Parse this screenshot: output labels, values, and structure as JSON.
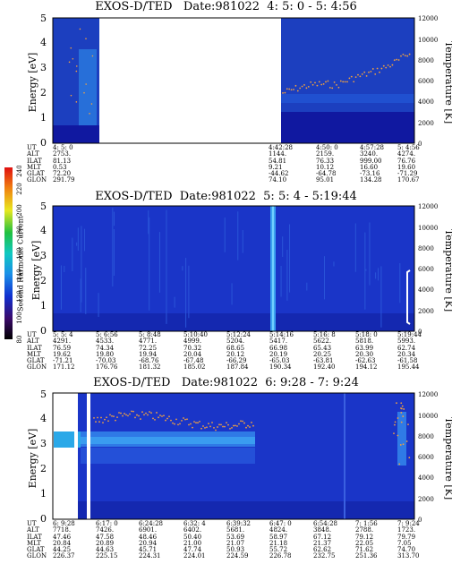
{
  "chart_data": [
    {
      "type": "heatmap",
      "title": "EXOS-D/TED   Date:981022  4: 5: 0 - 5: 4:56",
      "ylabel": "Energy [eV]",
      "y2label": "Temperature [K]",
      "ylim": [
        0,
        5
      ],
      "y2lim": [
        0,
        12000
      ],
      "yticks": [
        "0",
        "1",
        "2",
        "3",
        "4",
        "5"
      ],
      "y2ticks": [
        "0",
        "2000",
        "4000",
        "6000",
        "8000",
        "10000",
        "12000"
      ],
      "data_gap": "no data between 4: 5: 0 block and 4:42:28",
      "info_labels": [
        "UT",
        "ALT",
        "ILAT",
        "MLT",
        "GLAT",
        "GLON"
      ],
      "info_columns": [
        {
          "UT": "4: 5: 0",
          "ALT": "2753.",
          "ILAT": "81.13",
          "MLT": "0.53",
          "GLAT": "72.20",
          "GLON": "291.79"
        },
        {
          "UT": "4:42:28",
          "ALT": "1144.",
          "ILAT": "54.81",
          "MLT": "9.21",
          "GLAT": "-44.62",
          "GLON": "74.10"
        },
        {
          "UT": "4:50: 0",
          "ALT": "2159.",
          "ILAT": "76.33",
          "MLT": "10.12",
          "GLAT": "-64.78",
          "GLON": "95.01"
        },
        {
          "UT": "4:57:28",
          "ALT": "3240.",
          "ILAT": "999.00",
          "MLT": "16.60",
          "GLAT": "-73.16",
          "GLON": "134.28"
        },
        {
          "UT": "5: 4:56",
          "ALT": "4274.",
          "ILAT": "76.76",
          "MLT": "19.60",
          "GLAT": "-71.29",
          "GLON": "170.67"
        }
      ]
    },
    {
      "type": "heatmap",
      "title": "EXOS-D/TED  Date:981022  5: 5: 4 - 5:19:44",
      "ylabel": "Energy [eV]",
      "y2label": "Temperature [K]",
      "ylim": [
        0,
        5
      ],
      "y2lim": [
        0,
        12000
      ],
      "yticks": [
        "0",
        "1",
        "2",
        "3",
        "4",
        "5"
      ],
      "y2ticks": [
        "0",
        "2000",
        "4000",
        "6000",
        "8000",
        "10000",
        "12000"
      ],
      "colorbar": {
        "label": "Second Harmonic Current",
        "ticks": [
          "80",
          "100",
          "120",
          "140",
          "160",
          "180",
          "200",
          "220",
          "240"
        ]
      },
      "info_labels": [
        "UT",
        "ALT",
        "ILAT",
        "MLT",
        "GLAT",
        "GLON"
      ],
      "info_columns": [
        {
          "UT": "5: 5: 4",
          "ALT": "4291.",
          "ILAT": "76.59",
          "MLT": "19.62",
          "GLAT": "-71.21",
          "GLON": "171.12"
        },
        {
          "UT": "5: 6:56",
          "ALT": "4533.",
          "ILAT": "74.34",
          "MLT": "19.80",
          "GLAT": "-70.03",
          "GLON": "176.76"
        },
        {
          "UT": "5: 8:48",
          "ALT": "4771.",
          "ILAT": "72.25",
          "MLT": "19.94",
          "GLAT": "-68.76",
          "GLON": "181.32"
        },
        {
          "UT": "5:10:40",
          "ALT": "4999.",
          "ILAT": "70.32",
          "MLT": "20.04",
          "GLAT": "-67.48",
          "GLON": "185.02"
        },
        {
          "UT": "5:12:24",
          "ALT": "5204.",
          "ILAT": "68.65",
          "MLT": "20.12",
          "GLAT": "-66.29",
          "GLON": "187.84"
        },
        {
          "UT": "5:14:16",
          "ALT": "5417.",
          "ILAT": "66.98",
          "MLT": "20.19",
          "GLAT": "-65.03",
          "GLON": "190.34"
        },
        {
          "UT": "5:16: 8",
          "ALT": "5622.",
          "ILAT": "65.43",
          "MLT": "20.25",
          "GLAT": "-63.81",
          "GLON": "192.40"
        },
        {
          "UT": "5:18: 0",
          "ALT": "5818.",
          "ILAT": "63.99",
          "MLT": "20.30",
          "GLAT": "-62.63",
          "GLON": "194.12"
        },
        {
          "UT": "5:19:44",
          "ALT": "5993.",
          "ILAT": "62.74",
          "MLT": "20.34",
          "GLAT": "-61.58",
          "GLON": "195.44"
        }
      ]
    },
    {
      "type": "heatmap",
      "title": "EXOS-D/TED   Date:981022  6: 9:28 - 7: 9:24",
      "ylabel": "Energy [eV]",
      "y2label": "Temperature [K]",
      "ylim": [
        0,
        5
      ],
      "y2lim": [
        0,
        12000
      ],
      "yticks": [
        "0",
        "1",
        "2",
        "3",
        "4",
        "5"
      ],
      "y2ticks": [
        "0",
        "2000",
        "4000",
        "6000",
        "8000",
        "10000",
        "12000"
      ],
      "info_labels": [
        "UT",
        "ALT",
        "ILAT",
        "MLT",
        "GLAT",
        "GLON"
      ],
      "info_columns": [
        {
          "UT": "6: 9:28",
          "ALT": "7718.",
          "ILAT": "47.46",
          "MLT": "20.84",
          "GLAT": "44.25",
          "GLON": "226.37"
        },
        {
          "UT": "6:17: 0",
          "ALT": "7426.",
          "ILAT": "47.58",
          "MLT": "20.89",
          "GLAT": "44.63",
          "GLON": "225.15"
        },
        {
          "UT": "6:24:28",
          "ALT": "6901.",
          "ILAT": "48.46",
          "MLT": "20.94",
          "GLAT": "45.71",
          "GLON": "224.31"
        },
        {
          "UT": "6:32: 4",
          "ALT": "6402.",
          "ILAT": "50.40",
          "MLT": "21.00",
          "GLAT": "47.74",
          "GLON": "224.01"
        },
        {
          "UT": "6:39:32",
          "ALT": "5681.",
          "ILAT": "53.69",
          "MLT": "21.07",
          "GLAT": "50.93",
          "GLON": "224.59"
        },
        {
          "UT": "6:47: 0",
          "ALT": "4824.",
          "ILAT": "58.97",
          "MLT": "21.18",
          "GLAT": "55.72",
          "GLON": "226.78"
        },
        {
          "UT": "6:54:28",
          "ALT": "3848.",
          "ILAT": "67.12",
          "MLT": "21.37",
          "GLAT": "62.62",
          "GLON": "232.75"
        },
        {
          "UT": "7: 1:56",
          "ALT": "2788.",
          "ILAT": "79.12",
          "MLT": "22.05",
          "GLAT": "71.62",
          "GLON": "251.36"
        },
        {
          "UT": "7: 9:24",
          "ALT": "1723.",
          "ILAT": "79.79",
          "MLT": "7.05",
          "GLAT": "74.70",
          "GLON": "313.70"
        }
      ]
    }
  ]
}
